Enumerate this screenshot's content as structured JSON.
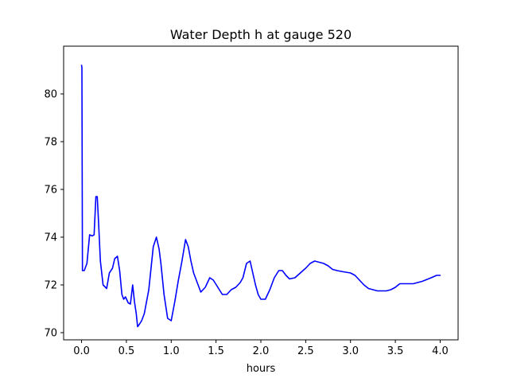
{
  "chart_data": {
    "type": "line",
    "title": "Water Depth h at gauge 520",
    "xlabel": "hours",
    "ylabel": "",
    "xlim": [
      -0.2,
      4.2
    ],
    "ylim": [
      69.7,
      82.0
    ],
    "xticks": [
      0.0,
      0.5,
      1.0,
      1.5,
      2.0,
      2.5,
      3.0,
      3.5,
      4.0
    ],
    "xtick_labels": [
      "0.0",
      "0.5",
      "1.0",
      "1.5",
      "2.0",
      "2.5",
      "3.0",
      "3.5",
      "4.0"
    ],
    "yticks": [
      70,
      72,
      74,
      76,
      78,
      80
    ],
    "ytick_labels": [
      "70",
      "72",
      "74",
      "76",
      "78",
      "80"
    ],
    "grid": false,
    "colors": {
      "line": "#0000ff",
      "axes": "#000000",
      "background": "#ffffff"
    },
    "series": [
      {
        "x": [
          0.0,
          0.004,
          0.01,
          0.03,
          0.06,
          0.09,
          0.12,
          0.14,
          0.16,
          0.175,
          0.19,
          0.21,
          0.24,
          0.28,
          0.31,
          0.345,
          0.37,
          0.4,
          0.425,
          0.45,
          0.47,
          0.49,
          0.52,
          0.545,
          0.57,
          0.59,
          0.61,
          0.625,
          0.645,
          0.67,
          0.7,
          0.75,
          0.8,
          0.835,
          0.865,
          0.885,
          0.92,
          0.96,
          1.0,
          1.04,
          1.08,
          1.12,
          1.16,
          1.19,
          1.22,
          1.25,
          1.28,
          1.33,
          1.38,
          1.43,
          1.47,
          1.52,
          1.57,
          1.62,
          1.67,
          1.72,
          1.77,
          1.8,
          1.84,
          1.88,
          1.91,
          1.94,
          1.97,
          2.0,
          2.05,
          2.1,
          2.15,
          2.2,
          2.24,
          2.28,
          2.32,
          2.38,
          2.44,
          2.5,
          2.55,
          2.6,
          2.65,
          2.7,
          2.75,
          2.8,
          2.85,
          2.92,
          3.0,
          3.05,
          3.1,
          3.15,
          3.2,
          3.3,
          3.4,
          3.45,
          3.5,
          3.55,
          3.6,
          3.7,
          3.8,
          3.9,
          3.96,
          4.0
        ],
        "y": [
          81.2,
          81.1,
          72.6,
          72.6,
          72.9,
          74.1,
          74.05,
          74.1,
          75.7,
          75.7,
          74.6,
          73.0,
          72.0,
          71.85,
          72.5,
          72.7,
          73.1,
          73.2,
          72.6,
          71.6,
          71.4,
          71.5,
          71.25,
          71.2,
          72.0,
          71.3,
          70.8,
          70.25,
          70.35,
          70.5,
          70.8,
          71.8,
          73.6,
          74.0,
          73.5,
          72.9,
          71.6,
          70.6,
          70.5,
          71.3,
          72.2,
          73.0,
          73.9,
          73.6,
          73.0,
          72.5,
          72.2,
          71.7,
          71.9,
          72.3,
          72.2,
          71.9,
          71.6,
          71.6,
          71.8,
          71.9,
          72.1,
          72.3,
          72.9,
          73.0,
          72.5,
          72.0,
          71.6,
          71.4,
          71.4,
          71.8,
          72.3,
          72.6,
          72.6,
          72.4,
          72.25,
          72.3,
          72.5,
          72.7,
          72.9,
          73.0,
          72.95,
          72.9,
          72.8,
          72.65,
          72.6,
          72.55,
          72.5,
          72.4,
          72.2,
          72.0,
          71.85,
          71.75,
          71.75,
          71.8,
          71.9,
          72.05,
          72.05,
          72.05,
          72.15,
          72.3,
          72.4,
          72.4
        ]
      }
    ]
  }
}
